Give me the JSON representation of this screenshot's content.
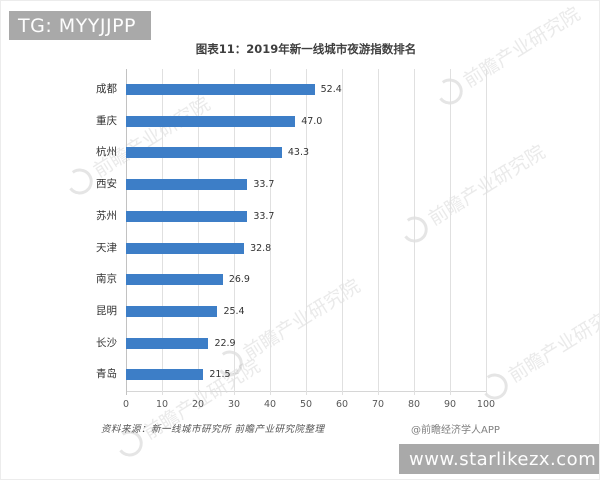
{
  "overlays": {
    "top_banner": "TG: MYYJJPP",
    "bottom_banner": "www.starlikezx.com",
    "banner_color": "#a9a9a9"
  },
  "chart_data": {
    "type": "bar",
    "orientation": "horizontal",
    "title": "图表11：2019年新一线城市夜游指数排名",
    "categories": [
      "成都",
      "重庆",
      "杭州",
      "西安",
      "苏州",
      "天津",
      "南京",
      "昆明",
      "长沙",
      "青岛"
    ],
    "values": [
      52.4,
      47.0,
      43.3,
      33.7,
      33.7,
      32.8,
      26.9,
      25.4,
      22.9,
      21.5
    ],
    "value_labels": [
      "52.4",
      "47.0",
      "43.3",
      "33.7",
      "33.7",
      "32.8",
      "26.9",
      "25.4",
      "22.9",
      "21.5"
    ],
    "x_ticks": [
      0,
      10,
      20,
      30,
      40,
      50,
      60,
      70,
      80,
      90,
      100
    ],
    "xlim": [
      0,
      100
    ],
    "xlabel": "",
    "ylabel": "",
    "bar_color": "#3d7ec7",
    "gridline_color": "#e0e0e0",
    "grid": true,
    "legend": false
  },
  "footer": {
    "source": "资料来源：新一线城市研究所 前瞻产业研究院整理",
    "credit": "@前瞻经济学人APP"
  },
  "watermark": {
    "text": "前瞻产业研究院"
  }
}
